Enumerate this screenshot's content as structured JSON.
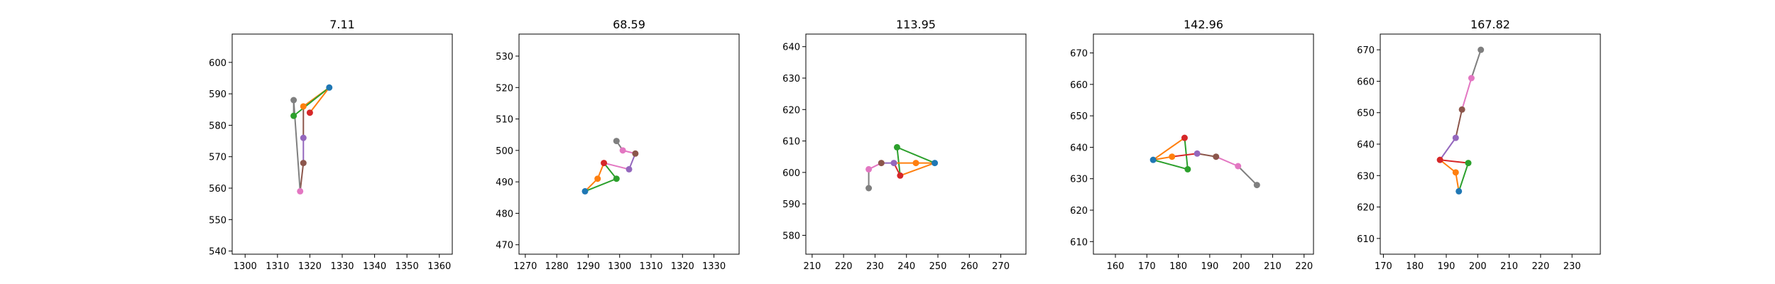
{
  "colors": {
    "c0": "#1f77b4",
    "c1": "#ff7f0e",
    "c2": "#2ca02c",
    "c3": "#d62728",
    "c4": "#9467bd",
    "c5": "#8c564b",
    "c6": "#e377c2",
    "c7": "#7f7f7f"
  },
  "chart_data": [
    {
      "type": "line",
      "title": "7.11",
      "xlim": [
        1296,
        1364
      ],
      "ylim": [
        539,
        609
      ],
      "xticks": [
        1300,
        1310,
        1320,
        1330,
        1340,
        1350,
        1360
      ],
      "yticks": [
        540,
        550,
        560,
        570,
        580,
        590,
        600
      ],
      "points": {
        "c0": [
          1326,
          592
        ],
        "c1": [
          1318,
          586
        ],
        "c2": [
          1315,
          583
        ],
        "c3": [
          1320,
          584
        ],
        "c4": [
          1318,
          576
        ],
        "c5": [
          1318,
          568
        ],
        "c6": [
          1317,
          559
        ],
        "c7": [
          1315,
          588
        ]
      },
      "segments": [
        [
          "c0",
          "c1",
          "c1"
        ],
        [
          "c0",
          "c2",
          "c2"
        ],
        [
          "c0",
          "c3",
          "c1"
        ],
        [
          "c1",
          "c4",
          "c5"
        ],
        [
          "c4",
          "c5",
          "c4"
        ],
        [
          "c5",
          "c6",
          "c5"
        ],
        [
          "c2",
          "c7",
          "c7"
        ],
        [
          "c7",
          "c6",
          "c7"
        ]
      ]
    },
    {
      "type": "line",
      "title": "68.59",
      "xlim": [
        1268,
        1338
      ],
      "ylim": [
        467,
        537
      ],
      "xticks": [
        1270,
        1280,
        1290,
        1300,
        1310,
        1320,
        1330
      ],
      "yticks": [
        470,
        480,
        490,
        500,
        510,
        520,
        530
      ],
      "points": {
        "c0": [
          1289,
          487
        ],
        "c1": [
          1293,
          491
        ],
        "c2": [
          1299,
          491
        ],
        "c3": [
          1295,
          496
        ],
        "c4": [
          1303,
          494
        ],
        "c5": [
          1305,
          499
        ],
        "c6": [
          1301,
          500
        ],
        "c7": [
          1299,
          503
        ]
      },
      "segments": [
        [
          "c0",
          "c1",
          "c1"
        ],
        [
          "c1",
          "c3",
          "c1"
        ],
        [
          "c0",
          "c2",
          "c2"
        ],
        [
          "c2",
          "c3",
          "c2"
        ],
        [
          "c3",
          "c4",
          "c6"
        ],
        [
          "c4",
          "c5",
          "c4"
        ],
        [
          "c5",
          "c6",
          "c6"
        ],
        [
          "c6",
          "c7",
          "c7"
        ]
      ]
    },
    {
      "type": "line",
      "title": "113.95",
      "xlim": [
        208,
        278
      ],
      "ylim": [
        574,
        644
      ],
      "xticks": [
        210,
        220,
        230,
        240,
        250,
        260,
        270
      ],
      "yticks": [
        580,
        590,
        600,
        610,
        620,
        630,
        640
      ],
      "points": {
        "c0": [
          249,
          603
        ],
        "c1": [
          243,
          603
        ],
        "c2": [
          237,
          608
        ],
        "c3": [
          238,
          599
        ],
        "c4": [
          236,
          603
        ],
        "c5": [
          232,
          603
        ],
        "c6": [
          228,
          601
        ],
        "c7": [
          228,
          595
        ]
      },
      "segments": [
        [
          "c0",
          "c1",
          "c1"
        ],
        [
          "c0",
          "c2",
          "c2"
        ],
        [
          "c2",
          "c3",
          "c2"
        ],
        [
          "c0",
          "c3",
          "c1"
        ],
        [
          "c3",
          "c4",
          "c3"
        ],
        [
          "c1",
          "c4",
          "c1"
        ],
        [
          "c4",
          "c5",
          "c4"
        ],
        [
          "c5",
          "c6",
          "c6"
        ],
        [
          "c6",
          "c7",
          "c7"
        ]
      ]
    },
    {
      "type": "line",
      "title": "142.96",
      "xlim": [
        153,
        223
      ],
      "ylim": [
        606,
        676
      ],
      "xticks": [
        160,
        170,
        180,
        190,
        200,
        210,
        220
      ],
      "yticks": [
        610,
        620,
        630,
        640,
        650,
        660,
        670
      ],
      "points": {
        "c0": [
          172,
          636
        ],
        "c1": [
          178,
          637
        ],
        "c2": [
          183,
          633
        ],
        "c3": [
          182,
          643
        ],
        "c4": [
          186,
          638
        ],
        "c5": [
          192,
          637
        ],
        "c6": [
          199,
          634
        ],
        "c7": [
          205,
          628
        ]
      },
      "segments": [
        [
          "c0",
          "c1",
          "c1"
        ],
        [
          "c0",
          "c3",
          "c1"
        ],
        [
          "c0",
          "c2",
          "c2"
        ],
        [
          "c2",
          "c3",
          "c2"
        ],
        [
          "c1",
          "c4",
          "c3"
        ],
        [
          "c4",
          "c5",
          "c5"
        ],
        [
          "c5",
          "c6",
          "c6"
        ],
        [
          "c6",
          "c7",
          "c7"
        ]
      ]
    },
    {
      "type": "line",
      "title": "167.82",
      "xlim": [
        169,
        239
      ],
      "ylim": [
        605,
        675
      ],
      "xticks": [
        170,
        180,
        190,
        200,
        210,
        220,
        230
      ],
      "yticks": [
        610,
        620,
        630,
        640,
        650,
        660,
        670
      ],
      "points": {
        "c0": [
          194,
          625
        ],
        "c1": [
          193,
          631
        ],
        "c2": [
          197,
          634
        ],
        "c3": [
          188,
          635
        ],
        "c4": [
          193,
          642
        ],
        "c5": [
          195,
          651
        ],
        "c6": [
          198,
          661
        ],
        "c7": [
          201,
          670
        ]
      },
      "segments": [
        [
          "c0",
          "c1",
          "c1"
        ],
        [
          "c1",
          "c3",
          "c1"
        ],
        [
          "c0",
          "c2",
          "c2"
        ],
        [
          "c2",
          "c3",
          "c3"
        ],
        [
          "c3",
          "c4",
          "c4"
        ],
        [
          "c4",
          "c5",
          "c5"
        ],
        [
          "c5",
          "c6",
          "c6"
        ],
        [
          "c6",
          "c7",
          "c7"
        ]
      ]
    }
  ]
}
